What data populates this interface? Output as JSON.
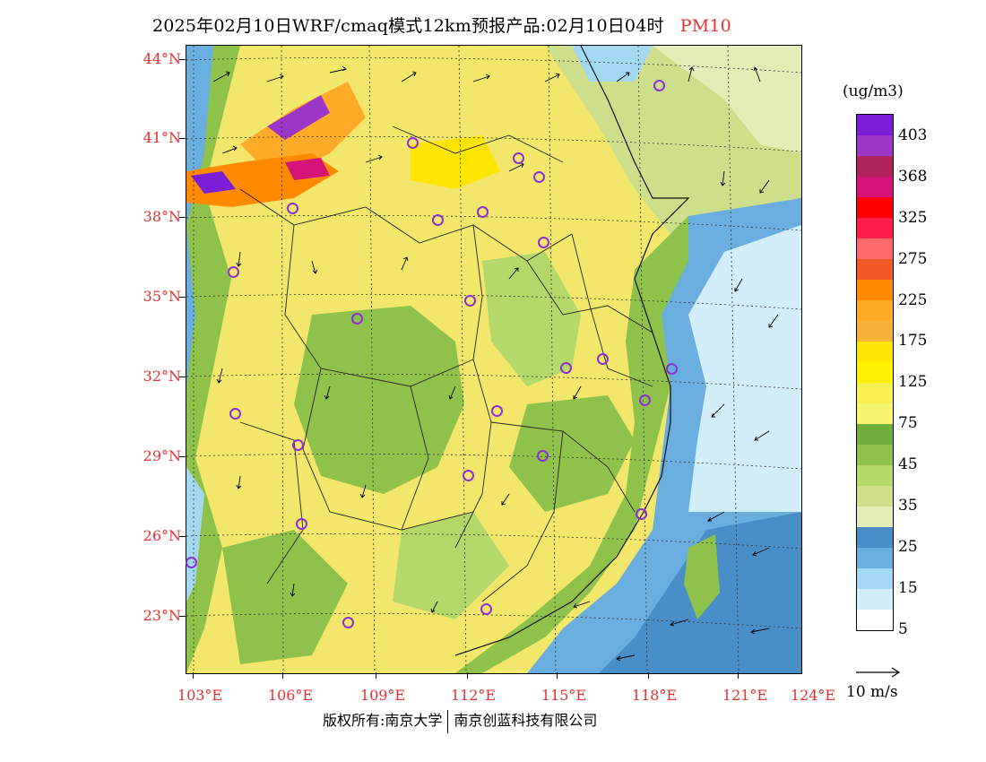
{
  "title": {
    "main": "2025年02月10日WRF/cmaq模式12km预报产品:02月10日04时",
    "variable": "PM10"
  },
  "axes": {
    "latitudes": [
      "44°N",
      "41°N",
      "38°N",
      "35°N",
      "32°N",
      "29°N",
      "26°N",
      "23°N"
    ],
    "longitudes": [
      "103°E",
      "106°E",
      "109°E",
      "112°E",
      "115°E",
      "118°E",
      "121°E",
      "124°E"
    ]
  },
  "legend": {
    "unit": "(ug/m3)",
    "labels": [
      "403",
      "368",
      "325",
      "275",
      "225",
      "175",
      "125",
      "75",
      "45",
      "35",
      "25",
      "15",
      "5"
    ],
    "colors": [
      "#7a1fd6",
      "#9b36c8",
      "#b0245c",
      "#d5147a",
      "#ff0000",
      "#ff1f4a",
      "#ff6a6a",
      "#f05a2a",
      "#ff8a00",
      "#ffab28",
      "#f6b338",
      "#ffe500",
      "#fff200",
      "#f8ef50",
      "#f7f56e",
      "#6fae3a",
      "#8fc24a",
      "#b4d86a",
      "#cddf8a",
      "#e3edb8",
      "#4a8ec8",
      "#6aaee0",
      "#a2d8f2",
      "#d2eefa",
      "#ffffff"
    ]
  },
  "wind": {
    "reference": "10 m/s"
  },
  "credit": {
    "left": "版权所有:南京大学",
    "right": "南京创蓝科技有限公司"
  }
}
